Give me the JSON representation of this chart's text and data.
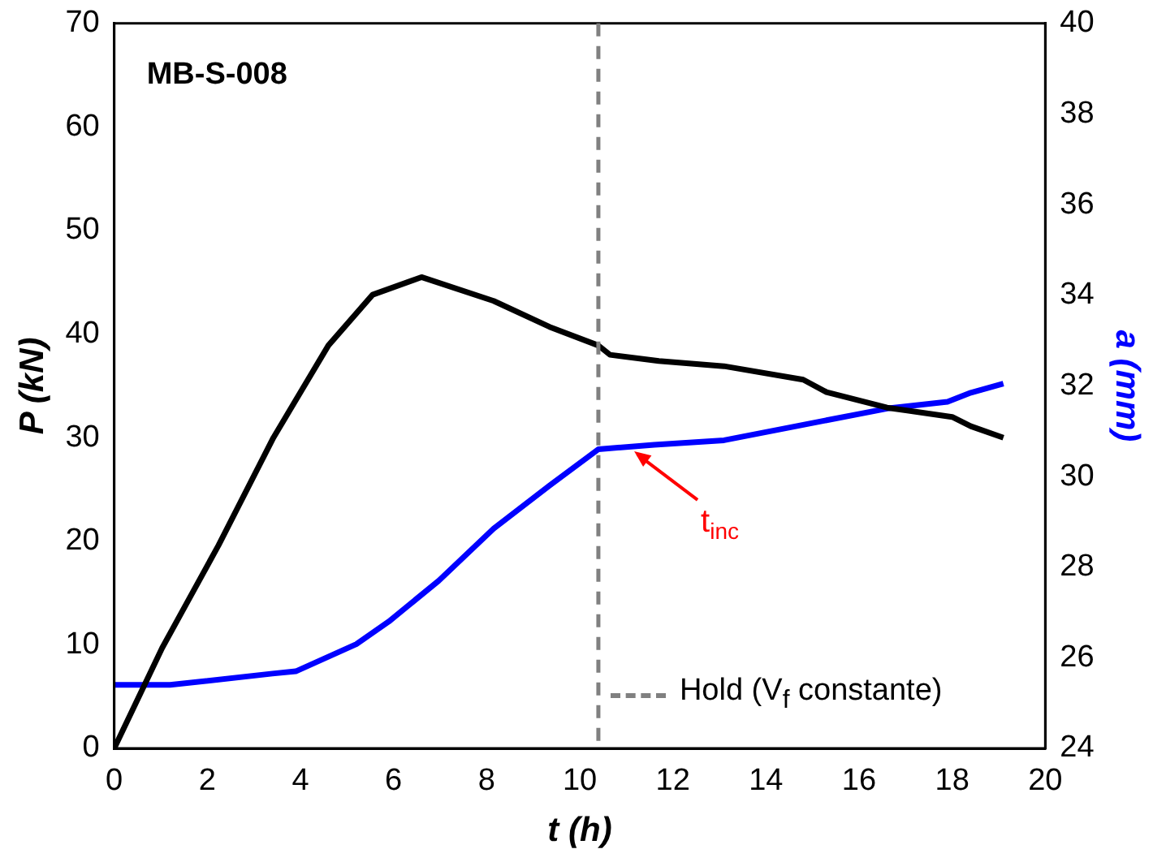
{
  "chart_data": {
    "type": "line",
    "xlabel": "t (h)",
    "ylabel": "P (kN)",
    "y2label": "a (mm)",
    "xlim": [
      0,
      20
    ],
    "xticks": [
      0,
      2,
      4,
      6,
      8,
      10,
      12,
      14,
      16,
      18,
      20
    ],
    "ylim": [
      0,
      70
    ],
    "yticks": [
      0,
      10,
      20,
      30,
      40,
      50,
      60,
      70
    ],
    "y2lim": [
      24,
      40
    ],
    "y2ticks": [
      24,
      26,
      28,
      30,
      32,
      34,
      36,
      38,
      40
    ],
    "grid": false,
    "legend": "bottom right",
    "marker": "none",
    "line_style": "solid",
    "series": [
      {
        "color": "#000000",
        "x": [
          0,
          1.03,
          2.24,
          3.42,
          4.6,
          5.55,
          6.6,
          8.15,
          9.35,
          10.4,
          10.65,
          11.7,
          13.1,
          14.8,
          15.3,
          16.6,
          18,
          18.4,
          19.1
        ],
        "values": [
          0,
          9.7,
          19.6,
          30,
          38.9,
          43.8,
          45.5,
          43.2,
          40.7,
          38.9,
          38,
          37.4,
          36.9,
          35.6,
          34.4,
          32.9,
          32,
          31.1,
          30
        ]
      },
      {
        "color": "#0000ff",
        "axis": "y2",
        "x": [
          0,
          1.2,
          3.4,
          3.9,
          5.2,
          5.9,
          6.97,
          8.15,
          9.35,
          10.4,
          11.6,
          13.1,
          14.6,
          16.6,
          17.9,
          18.4,
          19.1
        ],
        "values": [
          25.4,
          25.4,
          25.65,
          25.7,
          26.3,
          26.8,
          27.7,
          28.85,
          29.8,
          30.6,
          30.7,
          30.8,
          31.1,
          31.5,
          31.65,
          31.85,
          32.05
        ]
      }
    ],
    "ref_lines": [
      {
        "axis": "x",
        "value": 10.4,
        "label": "Hold (V$_{f}$ constante)",
        "color": "#808080",
        "line_style": "dashed"
      }
    ],
    "annotations": [
      "MB-S-008",
      {
        "text": "t$_{inc}$",
        "x": 11.1,
        "y": 29
      }
    ]
  }
}
